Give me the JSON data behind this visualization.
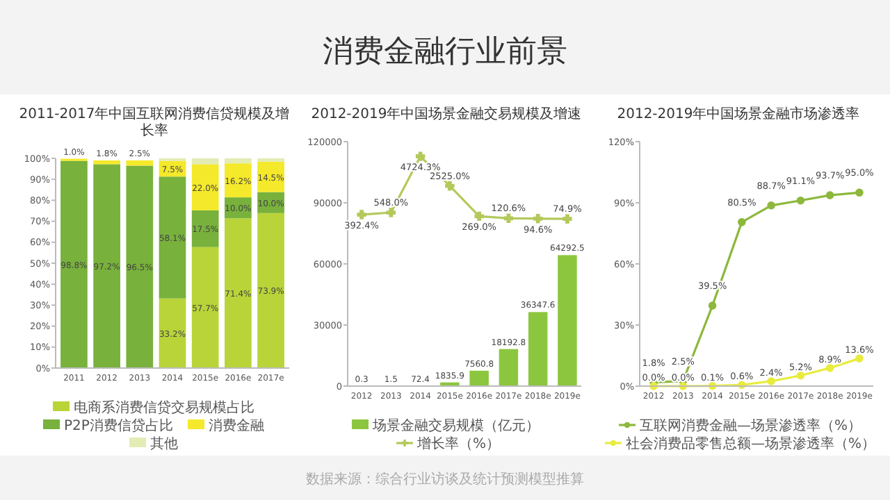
{
  "chart_data": [
    {
      "type": "other",
      "title": "消费金融行业前景",
      "annotations": [
        "数据来源：综合行业访谈及统计预测模型推算"
      ]
    },
    {
      "type": "bar",
      "title": "2011-2017年中国互联网消费信贷规模及增长率",
      "categories": [
        "2011",
        "2012",
        "2013",
        "2014",
        "2015e",
        "2016e",
        "2017e"
      ],
      "stacked": true,
      "ylim": [
        0,
        100
      ],
      "yticks": [
        {
          "value": 0,
          "label": "0%"
        },
        {
          "value": 10,
          "label": "10%"
        },
        {
          "value": 20,
          "label": "20%"
        },
        {
          "value": 30,
          "label": "30%"
        },
        {
          "value": 40,
          "label": "40%"
        },
        {
          "value": 50,
          "label": "50%"
        },
        {
          "value": 60,
          "label": "60%"
        },
        {
          "value": 70,
          "label": "70%"
        },
        {
          "value": 80,
          "label": "80%"
        },
        {
          "value": 90,
          "label": "90%"
        },
        {
          "value": 100,
          "label": "100%"
        }
      ],
      "legend": "bottom",
      "series": [
        {
          "name": "电商系消费信贷交易规模占比",
          "color": "#b9d439",
          "values": [
            0,
            0,
            0,
            33.2,
            57.7,
            71.4,
            73.9
          ],
          "value_labels": [
            null,
            null,
            null,
            "33.2%",
            "57.7%",
            "71.4%",
            "73.9%"
          ]
        },
        {
          "name": "P2P消费信贷占比",
          "color": "#78b13c",
          "values": [
            98.8,
            97.2,
            96.5,
            58.1,
            17.5,
            10.0,
            10.0
          ],
          "value_labels": [
            "98.8%",
            "97.2%",
            "96.5%",
            "58.1%",
            "17.5%",
            "10.0%",
            "10.0%"
          ]
        },
        {
          "name": "消费金融",
          "color": "#f4e92a",
          "values": [
            1.0,
            1.8,
            2.5,
            7.5,
            22.0,
            16.2,
            14.5
          ],
          "value_labels": [
            "1.0%",
            "1.8%",
            "2.5%",
            "7.5%",
            "22.0%",
            "16.2%",
            "14.5%"
          ]
        },
        {
          "name": "其他",
          "color": "#e3ecb4",
          "values": [
            null,
            null,
            null,
            1.2,
            2.8,
            2.4,
            1.6
          ]
        }
      ]
    },
    {
      "type": "bar",
      "title": "2012-2019年中国场景金融交易规模及增速",
      "categories": [
        "2012",
        "2013",
        "2014",
        "2015e",
        "2016e",
        "2017e",
        "2018e",
        "2019e"
      ],
      "ylim": [
        0,
        120000
      ],
      "yticks": [
        0,
        30000,
        60000,
        90000,
        120000
      ],
      "legend": "bottom",
      "marker": "cross",
      "series": [
        {
          "name": "场景金融交易规模（亿元）",
          "color": "#8cc63e",
          "values": [
            0.3,
            1.5,
            72.4,
            1835.9,
            7560.8,
            18192.8,
            36347.6,
            64292.5
          ],
          "value_labels": [
            "0.3",
            "1.5",
            "72.4",
            "1835.9",
            "7560.8",
            "18192.8",
            "36347.6",
            "64292.5"
          ]
        },
        {
          "name": "增长率（%）",
          "type": "line",
          "axis": "y2",
          "color": "#b3c95a",
          "values": [
            392.4,
            548.0,
            4724.3,
            2525.0,
            269.0,
            120.6,
            94.6,
            74.9
          ],
          "value_labels": [
            "392.4%",
            "548.0%",
            "4724.3%",
            "2525.0%",
            "269.0%",
            "120.6%",
            "94.6%",
            "74.9%"
          ]
        }
      ]
    },
    {
      "type": "line",
      "title": "2012-2019年中国场景金融市场渗透率",
      "categories": [
        "2012",
        "2013",
        "2014",
        "2015e",
        "2016e",
        "2017e",
        "2018e",
        "2019e"
      ],
      "ylim": [
        0,
        120
      ],
      "yticks": [
        {
          "value": 0,
          "label": "0%"
        },
        {
          "value": 30,
          "label": "30%"
        },
        {
          "value": 60,
          "label": "60%"
        },
        {
          "value": 90,
          "label": "90%"
        },
        {
          "value": 120,
          "label": "120%"
        }
      ],
      "legend": "bottom",
      "marker": "circle",
      "series": [
        {
          "name": "互联网消费金融—场景渗透率（%）",
          "color": "#8db83c",
          "values": [
            1.8,
            2.5,
            39.5,
            80.5,
            88.7,
            91.1,
            93.7,
            95.0
          ],
          "value_labels": [
            "1.8%",
            "2.5%",
            "39.5%",
            "80.5%",
            "88.7%",
            "91.1%",
            "93.7%",
            "95.0%"
          ]
        },
        {
          "name": "社会消费品零售总额—场景渗透率（%）",
          "color": "#e9ec3c",
          "values": [
            0.0,
            0.0,
            0.1,
            0.6,
            2.4,
            5.2,
            8.9,
            13.6
          ],
          "value_labels": [
            "0.0%",
            "0.0%",
            "0.1%",
            "0.6%",
            "2.4%",
            "5.2%",
            "8.9%",
            "13.6%"
          ]
        }
      ]
    }
  ]
}
